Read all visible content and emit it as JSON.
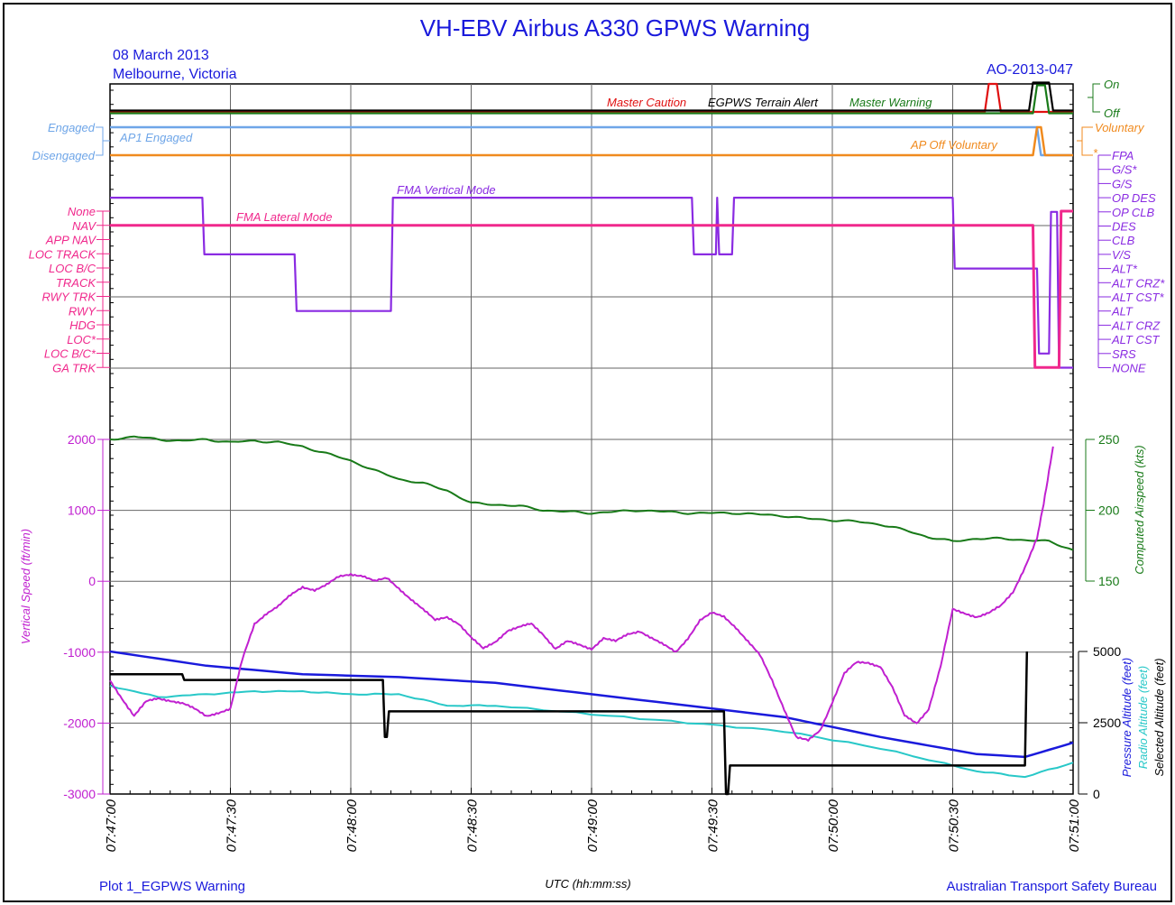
{
  "header": {
    "title": "VH-EBV Airbus A330 GPWS Warning",
    "date": "08 March 2013",
    "location": "Melbourne, Victoria",
    "report_id": "AO-2013-047"
  },
  "footer": {
    "plot_name": "Plot 1_EGPWS Warning",
    "xlabel": "UTC (hh:mm:ss)",
    "agency": "Australian Transport Safety Bureau"
  },
  "colors": {
    "title": "#1a1adc",
    "discrete_green": "#187a18",
    "master_caution": "#e01010",
    "egpws": "#000000",
    "ap1": "#6fa6e8",
    "ap_off": "#f08a1e",
    "fma_vertical": "#8a2be2",
    "fma_lateral": "#f0288c",
    "vertical_speed": "#c020d0",
    "airspeed": "#187a18",
    "pressure_alt": "#1a1adc",
    "radio_alt": "#28c8c8",
    "selected_alt": "#000000"
  },
  "chart_data": {
    "type": "line",
    "x_ticks": [
      "07:47:00",
      "07:47:30",
      "07:48:00",
      "07:48:30",
      "07:49:00",
      "07:49:30",
      "07:50:00",
      "07:50:30",
      "07:51:00"
    ],
    "x_range_seconds": [
      0,
      240
    ],
    "panels": {
      "warnings": {
        "states": [
          "On",
          "Off"
        ],
        "series": [
          {
            "name": "Master Caution",
            "points": [
              [
                0,
                0
              ],
              [
                218,
                0
              ],
              [
                219,
                1
              ],
              [
                221,
                1
              ],
              [
                222,
                0
              ],
              [
                240,
                0
              ]
            ]
          },
          {
            "name": "EGPWS Terrain Alert",
            "points": [
              [
                0,
                0
              ],
              [
                229,
                0
              ],
              [
                230,
                1
              ],
              [
                234,
                1
              ],
              [
                235,
                0
              ],
              [
                240,
                0
              ]
            ]
          },
          {
            "name": "Master Warning",
            "points": [
              [
                0,
                0
              ],
              [
                230,
                0
              ],
              [
                231,
                1
              ],
              [
                233,
                1
              ],
              [
                234,
                0
              ],
              [
                240,
                0
              ]
            ]
          }
        ]
      },
      "autopilot": {
        "ap1_states": [
          "Engaged",
          "Disengaged"
        ],
        "ap_off_states": [
          "Voluntary",
          "*"
        ],
        "series": [
          {
            "name": "AP1 Engaged",
            "points": [
              [
                0,
                1
              ],
              [
                231,
                1
              ],
              [
                232,
                0
              ],
              [
                240,
                0
              ]
            ]
          },
          {
            "name": "AP Off Voluntary",
            "points": [
              [
                0,
                0
              ],
              [
                230,
                0
              ],
              [
                231,
                1
              ],
              [
                232,
                1
              ],
              [
                233,
                0
              ],
              [
                240,
                0
              ]
            ]
          }
        ]
      },
      "fma": {
        "lateral_modes": [
          "None",
          "NAV",
          "APP NAV",
          "LOC TRACK",
          "LOC B/C",
          "TRACK",
          "RWY TRK",
          "RWY",
          "HDG",
          "LOC*",
          "LOC B/C*",
          "GA TRK"
        ],
        "vertical_modes": [
          "FPA",
          "G/S*",
          "G/S",
          "OP DES",
          "OP CLB",
          "DES",
          "CLB",
          "V/S",
          "ALT*",
          "ALT CRZ*",
          "ALT CST*",
          "ALT",
          "ALT CRZ",
          "ALT CST",
          "SRS",
          "NONE"
        ],
        "series": [
          {
            "name": "FMA Lateral Mode",
            "points": [
              [
                0,
                "NAV"
              ],
              [
                230,
                "NAV"
              ],
              [
                230.5,
                "GA TRK"
              ],
              [
                236.5,
                "GA TRK"
              ],
              [
                237,
                "None"
              ],
              [
                240,
                "None"
              ]
            ]
          },
          {
            "name": "FMA Vertical Mode",
            "points": [
              [
                0,
                "OP DES"
              ],
              [
                23,
                "OP DES"
              ],
              [
                23.5,
                "V/S"
              ],
              [
                46,
                "V/S"
              ],
              [
                46.5,
                "ALT"
              ],
              [
                70,
                "ALT"
              ],
              [
                70.5,
                "OP DES"
              ],
              [
                145,
                "OP DES"
              ],
              [
                145.5,
                "V/S"
              ],
              [
                151,
                "V/S"
              ],
              [
                151.3,
                "OP DES"
              ],
              [
                151.8,
                "V/S"
              ],
              [
                155,
                "V/S"
              ],
              [
                155.5,
                "OP DES"
              ],
              [
                210,
                "OP DES"
              ],
              [
                210.5,
                "ALT*"
              ],
              [
                231,
                "ALT*"
              ],
              [
                231.5,
                "SRS"
              ],
              [
                234,
                "SRS"
              ],
              [
                234.5,
                "OP CLB"
              ],
              [
                236,
                "OP CLB"
              ],
              [
                236.5,
                "NONE"
              ],
              [
                240,
                "NONE"
              ]
            ]
          }
        ]
      },
      "vertical_speed": {
        "ylabel": "Vertical Speed (ft/min)",
        "ylim": [
          -3000,
          2000
        ],
        "yticks": [
          2000,
          1000,
          0,
          -1000,
          -2000,
          -3000
        ],
        "points": [
          [
            0,
            -1400
          ],
          [
            3,
            -1650
          ],
          [
            6,
            -1900
          ],
          [
            9,
            -1700
          ],
          [
            12,
            -1650
          ],
          [
            15,
            -1680
          ],
          [
            18,
            -1720
          ],
          [
            21,
            -1800
          ],
          [
            24,
            -1900
          ],
          [
            27,
            -1850
          ],
          [
            30,
            -1800
          ],
          [
            33,
            -1100
          ],
          [
            36,
            -600
          ],
          [
            39,
            -450
          ],
          [
            42,
            -350
          ],
          [
            45,
            -200
          ],
          [
            48,
            -80
          ],
          [
            51,
            -120
          ],
          [
            54,
            -50
          ],
          [
            57,
            60
          ],
          [
            60,
            100
          ],
          [
            63,
            80
          ],
          [
            66,
            0
          ],
          [
            69,
            40
          ],
          [
            72,
            -100
          ],
          [
            75,
            -250
          ],
          [
            78,
            -400
          ],
          [
            81,
            -550
          ],
          [
            84,
            -500
          ],
          [
            87,
            -600
          ],
          [
            90,
            -800
          ],
          [
            93,
            -950
          ],
          [
            96,
            -850
          ],
          [
            99,
            -700
          ],
          [
            102,
            -650
          ],
          [
            105,
            -600
          ],
          [
            108,
            -750
          ],
          [
            111,
            -950
          ],
          [
            114,
            -850
          ],
          [
            117,
            -900
          ],
          [
            120,
            -950
          ],
          [
            123,
            -800
          ],
          [
            126,
            -850
          ],
          [
            129,
            -750
          ],
          [
            132,
            -700
          ],
          [
            135,
            -800
          ],
          [
            138,
            -900
          ],
          [
            141,
            -1000
          ],
          [
            144,
            -800
          ],
          [
            147,
            -550
          ],
          [
            150,
            -450
          ],
          [
            153,
            -500
          ],
          [
            156,
            -650
          ],
          [
            159,
            -850
          ],
          [
            162,
            -1050
          ],
          [
            165,
            -1400
          ],
          [
            168,
            -1800
          ],
          [
            171,
            -2200
          ],
          [
            174,
            -2250
          ],
          [
            177,
            -2100
          ],
          [
            180,
            -1700
          ],
          [
            183,
            -1300
          ],
          [
            186,
            -1150
          ],
          [
            189,
            -1150
          ],
          [
            192,
            -1200
          ],
          [
            195,
            -1500
          ],
          [
            198,
            -1900
          ],
          [
            201,
            -2000
          ],
          [
            204,
            -1800
          ],
          [
            207,
            -1200
          ],
          [
            210,
            -400
          ],
          [
            213,
            -450
          ],
          [
            216,
            -500
          ],
          [
            219,
            -450
          ],
          [
            222,
            -350
          ],
          [
            225,
            -150
          ],
          [
            228,
            200
          ],
          [
            231,
            600
          ],
          [
            233,
            1200
          ],
          [
            235,
            1900
          ]
        ]
      },
      "airspeed": {
        "ylabel": "Computed Airspeed (kts)",
        "ylim": [
          150,
          250
        ],
        "yticks": [
          250,
          200,
          150
        ],
        "points": [
          [
            0,
            250
          ],
          [
            6,
            252
          ],
          [
            12,
            250
          ],
          [
            18,
            249
          ],
          [
            24,
            250
          ],
          [
            30,
            248
          ],
          [
            36,
            249
          ],
          [
            42,
            248
          ],
          [
            48,
            245
          ],
          [
            54,
            240
          ],
          [
            60,
            235
          ],
          [
            66,
            228
          ],
          [
            72,
            222
          ],
          [
            78,
            219
          ],
          [
            84,
            214
          ],
          [
            90,
            205
          ],
          [
            96,
            204
          ],
          [
            102,
            203
          ],
          [
            108,
            200
          ],
          [
            114,
            199
          ],
          [
            120,
            198
          ],
          [
            126,
            199
          ],
          [
            132,
            200
          ],
          [
            138,
            199
          ],
          [
            144,
            198
          ],
          [
            150,
            198
          ],
          [
            156,
            198
          ],
          [
            162,
            197
          ],
          [
            168,
            196
          ],
          [
            174,
            194
          ],
          [
            180,
            193
          ],
          [
            186,
            192
          ],
          [
            192,
            190
          ],
          [
            198,
            186
          ],
          [
            204,
            181
          ],
          [
            210,
            178
          ],
          [
            216,
            180
          ],
          [
            222,
            180
          ],
          [
            228,
            179
          ],
          [
            234,
            178
          ],
          [
            240,
            172
          ]
        ]
      },
      "altitude": {
        "ylabel_pressure": "Pressure Altitude (feet)",
        "ylabel_radio": "Radio Altitude (feet)",
        "ylabel_selected": "Selected Altitude (feet)",
        "ylim": [
          0,
          5000
        ],
        "yticks": [
          5000,
          2500,
          0
        ],
        "series": [
          {
            "name": "Pressure Altitude",
            "points": [
              [
                0,
                5000
              ],
              [
                24,
                4500
              ],
              [
                48,
                4200
              ],
              [
                72,
                4100
              ],
              [
                96,
                3900
              ],
              [
                120,
                3500
              ],
              [
                144,
                3100
              ],
              [
                168,
                2700
              ],
              [
                192,
                2000
              ],
              [
                216,
                1400
              ],
              [
                228,
                1300
              ],
              [
                240,
                1800
              ]
            ]
          },
          {
            "name": "Radio Altitude",
            "points": [
              [
                0,
                3800
              ],
              [
                12,
                3400
              ],
              [
                24,
                3500
              ],
              [
                36,
                3600
              ],
              [
                48,
                3600
              ],
              [
                60,
                3500
              ],
              [
                72,
                3500
              ],
              [
                84,
                3100
              ],
              [
                96,
                3100
              ],
              [
                120,
                2800
              ],
              [
                144,
                2500
              ],
              [
                168,
                2200
              ],
              [
                192,
                1600
              ],
              [
                216,
                800
              ],
              [
                228,
                600
              ],
              [
                240,
                1100
              ]
            ]
          },
          {
            "name": "Selected Altitude",
            "points": [
              [
                0,
                4200
              ],
              [
                18,
                4200
              ],
              [
                18.5,
                4000
              ],
              [
                68,
                4000
              ],
              [
                68.5,
                2000
              ],
              [
                69,
                2000
              ],
              [
                69.5,
                2900
              ],
              [
                153,
                2900
              ],
              [
                153.5,
                0
              ],
              [
                154,
                0
              ],
              [
                154.5,
                1000
              ],
              [
                228,
                1000
              ],
              [
                228.5,
                5000
              ]
            ]
          }
        ]
      }
    }
  }
}
